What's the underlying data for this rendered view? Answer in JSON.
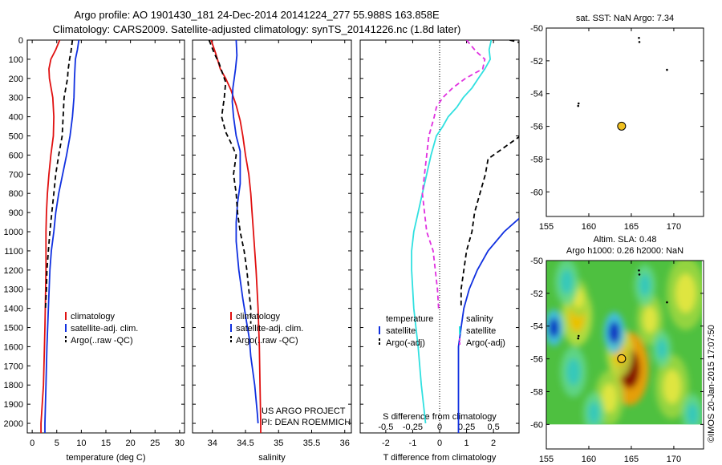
{
  "titles": {
    "line1": "Argo profile: AO 1901430_181 24-Dec-2014 20141224_277 55.988S 163.858E",
    "line2": "Climatology: CARS2009. Satellite-adjusted climatology: synTS_20141226.nc (1.8d later)"
  },
  "colors": {
    "climatology": "#e01010",
    "satellite": "#1030e0",
    "argo": "#000000",
    "temp_diff": "#30e0e0",
    "sal_diff": "#e030e0",
    "marker": "#f0c020"
  },
  "chart_data": [
    {
      "type": "line",
      "panel": "temperature",
      "xlabel": "temperature (deg C)",
      "ylabel": "",
      "xlim": [
        -1,
        31
      ],
      "ylim": [
        2050,
        0
      ],
      "xticks": [
        0,
        5,
        10,
        15,
        20,
        25,
        30
      ],
      "yticks": [
        0,
        100,
        200,
        300,
        400,
        500,
        600,
        700,
        800,
        900,
        1000,
        1100,
        1200,
        1300,
        1400,
        1500,
        1600,
        1700,
        1800,
        1900,
        2000
      ],
      "legend": [
        "climatology",
        "satellite-adj. clim.",
        "Argo(..raw -QC)"
      ],
      "series": [
        {
          "name": "climatology",
          "style": "solid",
          "color": "climatology",
          "points": [
            [
              5.6,
              0
            ],
            [
              4.8,
              50
            ],
            [
              3.8,
              100
            ],
            [
              3.4,
              150
            ],
            [
              3.5,
              200
            ],
            [
              4.2,
              300
            ],
            [
              4.4,
              400
            ],
            [
              4.3,
              500
            ],
            [
              3.8,
              600
            ],
            [
              3.4,
              700
            ],
            [
              3.1,
              800
            ],
            [
              2.9,
              900
            ],
            [
              2.8,
              1000
            ],
            [
              2.8,
              1200
            ],
            [
              2.6,
              1500
            ],
            [
              2.3,
              1800
            ],
            [
              1.8,
              2000
            ],
            [
              1.8,
              2050
            ]
          ]
        },
        {
          "name": "satellite-adj. clim.",
          "style": "solid",
          "color": "satellite",
          "points": [
            [
              9.5,
              0
            ],
            [
              9.2,
              50
            ],
            [
              8.8,
              100
            ],
            [
              8.6,
              200
            ],
            [
              8.5,
              300
            ],
            [
              8.2,
              400
            ],
            [
              7.7,
              500
            ],
            [
              7.0,
              600
            ],
            [
              6.2,
              700
            ],
            [
              5.4,
              800
            ],
            [
              4.8,
              900
            ],
            [
              4.4,
              1000
            ],
            [
              3.9,
              1100
            ],
            [
              3.6,
              1200
            ],
            [
              3.3,
              1400
            ],
            [
              3.0,
              1600
            ],
            [
              2.8,
              1800
            ],
            [
              2.6,
              2000
            ],
            [
              2.6,
              2050
            ]
          ]
        },
        {
          "name": "Argo(..raw -QC)",
          "style": "dashed",
          "color": "argo",
          "points": [
            [
              8.2,
              0
            ],
            [
              7.9,
              60
            ],
            [
              7.6,
              100
            ],
            [
              7.3,
              160
            ],
            [
              7.2,
              200
            ],
            [
              6.5,
              300
            ],
            [
              6.3,
              400
            ],
            [
              6.1,
              500
            ],
            [
              5.4,
              600
            ],
            [
              4.8,
              700
            ],
            [
              4.4,
              800
            ],
            [
              4.0,
              900
            ],
            [
              3.6,
              1000
            ],
            [
              3.3,
              1100
            ],
            [
              3.0,
              1200
            ],
            [
              2.9,
              1300
            ],
            [
              2.7,
              1400
            ]
          ]
        }
      ]
    },
    {
      "type": "line",
      "panel": "salinity",
      "xlabel": "salinity",
      "xlim": [
        33.7,
        36.1
      ],
      "ylim": [
        2050,
        0
      ],
      "xticks": [
        34,
        34.5,
        35,
        35.5,
        36
      ],
      "legend": [
        "climatology",
        "satellite-adj. clim.",
        "Argo(..raw -QC)"
      ],
      "annotation": [
        "US ARGO PROJECT",
        "PI: DEAN ROEMMICH"
      ],
      "series": [
        {
          "name": "climatology",
          "style": "solid",
          "color": "climatology",
          "points": [
            [
              33.98,
              0
            ],
            [
              34.05,
              70
            ],
            [
              34.12,
              150
            ],
            [
              34.2,
              200
            ],
            [
              34.28,
              260
            ],
            [
              34.36,
              340
            ],
            [
              34.42,
              420
            ],
            [
              34.46,
              500
            ],
            [
              34.5,
              600
            ],
            [
              34.55,
              700
            ],
            [
              34.58,
              800
            ],
            [
              34.6,
              900
            ],
            [
              34.62,
              1000
            ],
            [
              34.66,
              1200
            ],
            [
              34.69,
              1400
            ],
            [
              34.71,
              1600
            ],
            [
              34.72,
              1800
            ],
            [
              34.73,
              2000
            ],
            [
              34.73,
              2050
            ]
          ]
        },
        {
          "name": "satellite-adj. clim.",
          "style": "solid",
          "color": "satellite",
          "points": [
            [
              34.36,
              0
            ],
            [
              34.37,
              80
            ],
            [
              34.35,
              150
            ],
            [
              34.33,
              200
            ],
            [
              34.31,
              250
            ],
            [
              34.3,
              320
            ],
            [
              34.32,
              400
            ],
            [
              34.36,
              500
            ],
            [
              34.42,
              580
            ],
            [
              34.42,
              650
            ],
            [
              34.42,
              750
            ],
            [
              34.38,
              850
            ],
            [
              34.36,
              950
            ],
            [
              34.36,
              1050
            ],
            [
              34.4,
              1200
            ],
            [
              34.46,
              1350
            ],
            [
              34.52,
              1480
            ],
            [
              34.56,
              1560
            ],
            [
              34.58,
              1650
            ],
            [
              34.64,
              1800
            ],
            [
              34.68,
              1950
            ],
            [
              34.69,
              2000
            ]
          ]
        },
        {
          "name": "Argo(..raw -QC)",
          "style": "dashed",
          "color": "argo",
          "points": [
            [
              33.95,
              0
            ],
            [
              34.03,
              70
            ],
            [
              34.1,
              120
            ],
            [
              34.15,
              170
            ],
            [
              34.2,
              220
            ],
            [
              34.18,
              300
            ],
            [
              34.14,
              400
            ],
            [
              34.2,
              480
            ],
            [
              34.3,
              550
            ],
            [
              34.36,
              600
            ],
            [
              34.32,
              700
            ],
            [
              34.36,
              800
            ],
            [
              34.38,
              900
            ],
            [
              34.42,
              1000
            ],
            [
              34.48,
              1100
            ],
            [
              34.52,
              1200
            ],
            [
              34.55,
              1300
            ],
            [
              34.58,
              1400
            ],
            [
              34.58,
              1480
            ]
          ]
        }
      ]
    },
    {
      "type": "line",
      "panel": "difference",
      "xlabel": "T difference from climatology",
      "xlabel_top": "S difference from climatology",
      "xlim": [
        -2.95,
        2.95
      ],
      "xticks": [
        -2,
        -1,
        0,
        1,
        2
      ],
      "xticks_top": [
        -0.5,
        -0.25,
        0,
        0.25,
        0.5
      ],
      "ylim": [
        2050,
        0
      ],
      "legend": {
        "temperature": [
          "temperature",
          "satellite",
          "Argo(-adj)"
        ],
        "salinity": [
          "salinity",
          "satellite",
          "Argo(-adj)"
        ]
      },
      "series": [
        {
          "name": "satellite",
          "group": "temperature",
          "style": "solid",
          "color": "satellite",
          "points": [
            [
              5.0,
              700
            ],
            [
              4.0,
              800
            ],
            [
              3.2,
              900
            ],
            [
              2.4,
              1000
            ],
            [
              1.8,
              1100
            ],
            [
              1.4,
              1200
            ],
            [
              1.1,
              1300
            ],
            [
              0.9,
              1400
            ],
            [
              0.8,
              1500
            ],
            [
              0.7,
              1600
            ],
            [
              0.7,
              1800
            ],
            [
              0.7,
              2000
            ],
            [
              0.7,
              2050
            ]
          ]
        },
        {
          "name": "Argo(-adj)",
          "group": "temperature",
          "style": "dashed",
          "color": "argo",
          "points": [
            [
              2.6,
              0
            ],
            [
              3.2,
              20
            ],
            [
              4.0,
              60
            ],
            [
              3.8,
              120
            ],
            [
              3.6,
              200
            ],
            [
              3.3,
              300
            ],
            [
              3.2,
              400
            ],
            [
              3.0,
              500
            ],
            [
              2.4,
              560
            ],
            [
              1.8,
              620
            ],
            [
              1.7,
              700
            ],
            [
              1.5,
              800
            ],
            [
              1.3,
              900
            ],
            [
              1.2,
              1000
            ],
            [
              1.0,
              1100
            ],
            [
              0.9,
              1200
            ],
            [
              0.8,
              1300
            ],
            [
              0.8,
              1400
            ]
          ]
        },
        {
          "name": "satellite",
          "group": "salinity",
          "style": "solid",
          "color": "temp_diff",
          "points": [
            [
              0.48,
              0
            ],
            [
              0.46,
              50
            ],
            [
              0.47,
              100
            ],
            [
              0.42,
              150
            ],
            [
              0.36,
              200
            ],
            [
              0.3,
              250
            ],
            [
              0.22,
              300
            ],
            [
              0.16,
              350
            ],
            [
              0.08,
              400
            ],
            [
              0.03,
              450
            ],
            [
              -0.03,
              500
            ],
            [
              -0.08,
              600
            ],
            [
              -0.12,
              700
            ],
            [
              -0.16,
              800
            ],
            [
              -0.2,
              900
            ],
            [
              -0.24,
              1000
            ],
            [
              -0.26,
              1100
            ],
            [
              -0.26,
              1200
            ],
            [
              -0.24,
              1400
            ],
            [
              -0.2,
              1600
            ],
            [
              -0.17,
              1800
            ],
            [
              -0.14,
              1950
            ],
            [
              -0.13,
              2000
            ]
          ]
        },
        {
          "name": "Argo(-adj)",
          "group": "salinity",
          "style": "dashed",
          "color": "sal_diff",
          "points": [
            [
              0.25,
              0
            ],
            [
              0.34,
              60
            ],
            [
              0.42,
              100
            ],
            [
              0.4,
              150
            ],
            [
              0.24,
              200
            ],
            [
              0.12,
              250
            ],
            [
              0.03,
              300
            ],
            [
              -0.03,
              350
            ],
            [
              -0.05,
              400
            ],
            [
              -0.1,
              500
            ],
            [
              -0.12,
              600
            ],
            [
              -0.14,
              700
            ],
            [
              -0.16,
              800
            ],
            [
              -0.14,
              900
            ],
            [
              -0.12,
              1000
            ],
            [
              -0.06,
              1100
            ],
            [
              -0.04,
              1200
            ],
            [
              -0.02,
              1300
            ],
            [
              -0.01,
              1400
            ]
          ]
        }
      ]
    },
    {
      "type": "scatter",
      "panel": "sst-map",
      "title": "sat. SST: NaN Argo: 7.34",
      "xlim": [
        155,
        173.5
      ],
      "ylim": [
        -61.5,
        -50
      ],
      "xticks": [
        155,
        160,
        165,
        170
      ],
      "yticks": [
        -50,
        -52,
        -54,
        -56,
        -58,
        -60
      ],
      "marker": {
        "x": 163.858,
        "y": -55.988
      },
      "small_points": [
        [
          165.9,
          -50.6
        ],
        [
          165.95,
          -50.85
        ],
        [
          169.2,
          -52.55
        ],
        [
          158.8,
          -54.6
        ],
        [
          158.75,
          -54.75
        ]
      ]
    },
    {
      "type": "heatmap",
      "panel": "sla-map",
      "title_line1": "Altim. SLA: 0.48",
      "title_line2": "Argo h1000: 0.26 h2000: NaN",
      "xlim": [
        155,
        173.5
      ],
      "ylim": [
        -61.5,
        -50
      ],
      "xticks": [
        155,
        160,
        165,
        170
      ],
      "yticks": [
        -50,
        -52,
        -54,
        -56,
        -58,
        -60
      ],
      "marker": {
        "x": 163.858,
        "y": -55.988
      },
      "small_points": [
        [
          165.9,
          -50.6
        ],
        [
          165.95,
          -50.85
        ],
        [
          169.2,
          -52.55
        ],
        [
          158.8,
          -54.6
        ],
        [
          158.75,
          -54.75
        ]
      ],
      "blobs": [
        {
          "x": 164.8,
          "y": -56.6,
          "r": 1.6,
          "v": 1.0
        },
        {
          "x": 163.6,
          "y": -55.6,
          "r": 1.1,
          "v": 0.6
        },
        {
          "x": 158.6,
          "y": -53.4,
          "r": 1.3,
          "v": 0.5
        },
        {
          "x": 158.8,
          "y": -52.3,
          "r": 0.8,
          "v": 0.35
        },
        {
          "x": 162.4,
          "y": -58.4,
          "r": 1.2,
          "v": 0.3
        },
        {
          "x": 171.4,
          "y": -52.0,
          "r": 1.6,
          "v": 0.35
        },
        {
          "x": 169.8,
          "y": -57.7,
          "r": 1.4,
          "v": 0.25
        },
        {
          "x": 167.2,
          "y": -53.6,
          "r": 1.1,
          "v": 0.25
        },
        {
          "x": 155.9,
          "y": -54.1,
          "r": 0.8,
          "v": -0.8
        },
        {
          "x": 163.0,
          "y": -54.4,
          "r": 0.9,
          "v": -0.85
        },
        {
          "x": 157.4,
          "y": -51.3,
          "r": 1.0,
          "v": -0.4
        },
        {
          "x": 158.2,
          "y": -56.8,
          "r": 1.1,
          "v": -0.35
        },
        {
          "x": 166.6,
          "y": -51.5,
          "r": 0.9,
          "v": -0.35
        },
        {
          "x": 160.6,
          "y": -59.3,
          "r": 0.9,
          "v": -0.3
        },
        {
          "x": 168.6,
          "y": -55.4,
          "r": 0.8,
          "v": -0.3
        },
        {
          "x": 172.2,
          "y": -59.4,
          "r": 0.9,
          "v": -0.3
        }
      ]
    }
  ],
  "watermark": "©IMOS 20-Jan-2015 17:07:50"
}
